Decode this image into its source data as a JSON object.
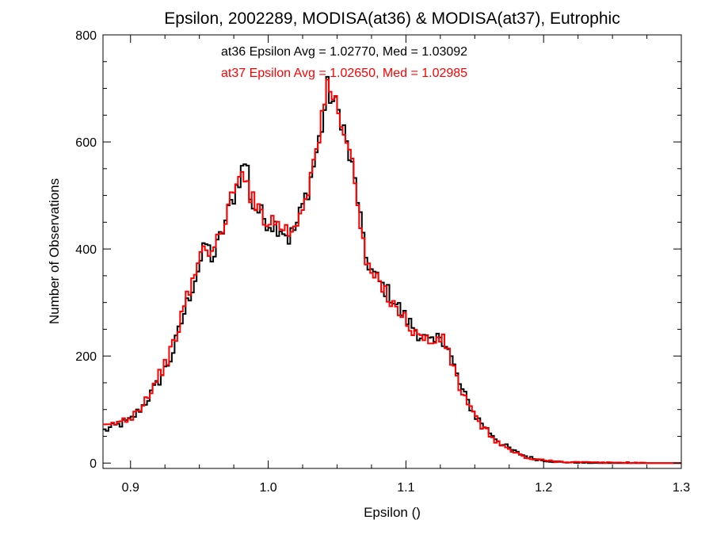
{
  "chart_data": {
    "type": "line",
    "title": "Epsilon, 2002289, MODISA(at36) & MODISA(at37), Eutrophic",
    "xlabel": "Epsilon ()",
    "ylabel": "Number of Observations",
    "xlim": [
      0.88,
      1.3
    ],
    "ylim": [
      -10,
      800
    ],
    "x_ticks": [
      0.9,
      1.0,
      1.1,
      1.2,
      1.3
    ],
    "x_tick_labels": [
      "0.9",
      "1.0",
      "1.1",
      "1.2",
      "1.3"
    ],
    "y_ticks": [
      0,
      200,
      400,
      600,
      800
    ],
    "y_tick_labels": [
      "0",
      "200",
      "400",
      "600",
      "800"
    ],
    "grid": false,
    "bin_width": 0.002,
    "annotations": [
      {
        "text": "at36 Epsilon Avg = 1.02770, Med = 1.03092",
        "color": "#000000"
      },
      {
        "text": "at37 Epsilon Avg = 1.02650, Med = 1.02985",
        "color": "#ff0000"
      }
    ],
    "series": [
      {
        "color": "#000000",
        "x": [
          0.88,
          0.89,
          0.9,
          0.91,
          0.92,
          0.93,
          0.94,
          0.95,
          0.955,
          0.96,
          0.965,
          0.97,
          0.975,
          0.98,
          0.984,
          0.988,
          0.99,
          1.0,
          1.01,
          1.015,
          1.02,
          1.025,
          1.03,
          1.035,
          1.04,
          1.043,
          1.046,
          1.05,
          1.054,
          1.058,
          1.062,
          1.066,
          1.07,
          1.075,
          1.08,
          1.09,
          1.1,
          1.11,
          1.12,
          1.125,
          1.13,
          1.135,
          1.14,
          1.15,
          1.16,
          1.17,
          1.18,
          1.19,
          1.2,
          1.21,
          1.22,
          1.24,
          1.26,
          1.28,
          1.3
        ],
        "y": [
          60,
          70,
          80,
          110,
          150,
          200,
          290,
          370,
          410,
          380,
          420,
          460,
          500,
          540,
          570,
          480,
          480,
          450,
          440,
          420,
          440,
          480,
          520,
          580,
          640,
          700,
          680,
          660,
          640,
          580,
          540,
          480,
          390,
          360,
          340,
          310,
          270,
          240,
          220,
          240,
          220,
          180,
          140,
          90,
          60,
          35,
          20,
          10,
          5,
          2,
          1,
          0,
          0,
          0,
          0
        ]
      },
      {
        "color": "#ff0000",
        "x": [
          0.88,
          0.89,
          0.9,
          0.91,
          0.92,
          0.93,
          0.94,
          0.95,
          0.955,
          0.96,
          0.965,
          0.97,
          0.975,
          0.98,
          0.984,
          0.988,
          0.99,
          1.0,
          1.01,
          1.015,
          1.02,
          1.025,
          1.03,
          1.035,
          1.04,
          1.043,
          1.046,
          1.05,
          1.054,
          1.058,
          1.062,
          1.066,
          1.07,
          1.075,
          1.08,
          1.09,
          1.1,
          1.11,
          1.12,
          1.125,
          1.13,
          1.135,
          1.14,
          1.15,
          1.16,
          1.17,
          1.18,
          1.19,
          1.2,
          1.21,
          1.22,
          1.24,
          1.26,
          1.28,
          1.3
        ],
        "y": [
          65,
          75,
          85,
          115,
          160,
          210,
          300,
          380,
          410,
          390,
          425,
          470,
          505,
          530,
          550,
          490,
          485,
          455,
          445,
          430,
          445,
          485,
          525,
          585,
          650,
          705,
          690,
          665,
          640,
          590,
          545,
          470,
          380,
          355,
          335,
          305,
          265,
          235,
          225,
          235,
          215,
          175,
          135,
          85,
          55,
          32,
          18,
          8,
          5,
          3,
          2,
          1,
          1,
          0,
          0
        ]
      }
    ]
  }
}
